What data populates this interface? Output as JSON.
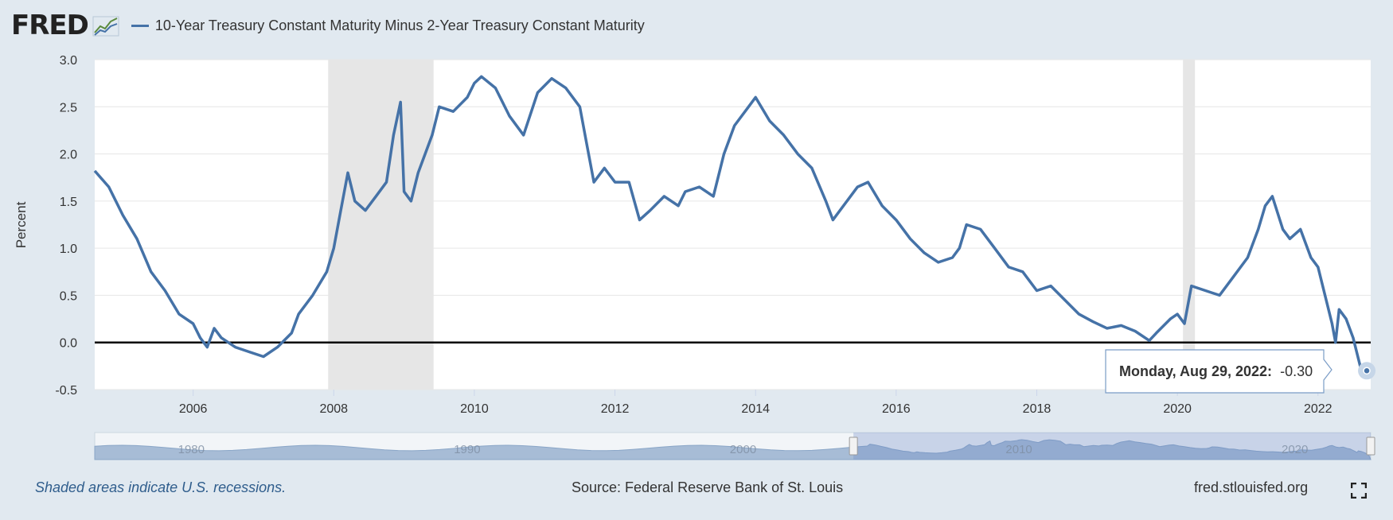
{
  "header": {
    "logo": "FRED",
    "logo_icon": "line-chart-icon",
    "series_label": "10-Year Treasury Constant Maturity Minus 2-Year Treasury Constant Maturity",
    "series_color": "#4572a7"
  },
  "tooltip": {
    "date": "Monday, Aug 29, 2022:",
    "value": "-0.30"
  },
  "footer": {
    "note": "Shaded areas indicate U.S. recessions.",
    "source": "Source: Federal Reserve Bank of St. Louis",
    "site": "fred.stlouisfed.org",
    "fullscreen_icon": "fullscreen-icon"
  },
  "colors": {
    "background": "#e1e9f0",
    "plot": "#ffffff",
    "recession": "#e6e6e6",
    "line": "#4572a7",
    "navigator_fill": "#a7bcd6"
  },
  "chart_data": {
    "type": "line",
    "title": "",
    "xlabel": "",
    "ylabel": "Percent",
    "ylim": [
      -0.5,
      3.0
    ],
    "yticks": [
      "3.0",
      "2.5",
      "2.0",
      "1.5",
      "1.0",
      "0.5",
      "0.0",
      "-0.5"
    ],
    "xlim": [
      2004.6,
      2022.75
    ],
    "xticks": [
      "2006",
      "2008",
      "2010",
      "2012",
      "2014",
      "2016",
      "2018",
      "2020",
      "2022"
    ],
    "grid": true,
    "zero_line": true,
    "recessions": [
      [
        2007.92,
        2009.42
      ],
      [
        2020.08,
        2020.25
      ]
    ],
    "series": [
      {
        "name": "10-Year Treasury Constant Maturity Minus 2-Year Treasury Constant Maturity",
        "x": [
          2004.6,
          2004.8,
          2005.0,
          2005.2,
          2005.4,
          2005.6,
          2005.8,
          2006.0,
          2006.1,
          2006.2,
          2006.3,
          2006.4,
          2006.6,
          2006.8,
          2007.0,
          2007.2,
          2007.4,
          2007.5,
          2007.7,
          2007.9,
          2008.0,
          2008.1,
          2008.2,
          2008.3,
          2008.45,
          2008.6,
          2008.75,
          2008.85,
          2008.95,
          2009.0,
          2009.1,
          2009.2,
          2009.3,
          2009.4,
          2009.5,
          2009.7,
          2009.9,
          2010.0,
          2010.1,
          2010.3,
          2010.5,
          2010.7,
          2010.9,
          2011.1,
          2011.3,
          2011.5,
          2011.6,
          2011.7,
          2011.85,
          2012.0,
          2012.2,
          2012.35,
          2012.5,
          2012.7,
          2012.9,
          2013.0,
          2013.2,
          2013.4,
          2013.55,
          2013.7,
          2013.9,
          2014.0,
          2014.2,
          2014.4,
          2014.6,
          2014.8,
          2015.0,
          2015.1,
          2015.3,
          2015.45,
          2015.6,
          2015.8,
          2016.0,
          2016.2,
          2016.4,
          2016.6,
          2016.8,
          2016.9,
          2017.0,
          2017.2,
          2017.4,
          2017.6,
          2017.8,
          2018.0,
          2018.2,
          2018.4,
          2018.6,
          2018.8,
          2019.0,
          2019.2,
          2019.4,
          2019.6,
          2019.7,
          2019.9,
          2020.0,
          2020.1,
          2020.2,
          2020.4,
          2020.6,
          2020.8,
          2021.0,
          2021.15,
          2021.25,
          2021.35,
          2021.5,
          2021.6,
          2021.75,
          2021.9,
          2022.0,
          2022.1,
          2022.2,
          2022.25,
          2022.3,
          2022.4,
          2022.5,
          2022.6,
          2022.66
        ],
        "y": [
          1.82,
          1.65,
          1.35,
          1.1,
          0.75,
          0.55,
          0.3,
          0.2,
          0.05,
          -0.05,
          0.15,
          0.05,
          -0.05,
          -0.1,
          -0.15,
          -0.05,
          0.1,
          0.3,
          0.5,
          0.75,
          1.0,
          1.4,
          1.8,
          1.5,
          1.4,
          1.55,
          1.7,
          2.2,
          2.55,
          1.6,
          1.5,
          1.8,
          2.0,
          2.2,
          2.5,
          2.45,
          2.6,
          2.75,
          2.82,
          2.7,
          2.4,
          2.2,
          2.65,
          2.8,
          2.7,
          2.5,
          2.1,
          1.7,
          1.85,
          1.7,
          1.7,
          1.3,
          1.4,
          1.55,
          1.45,
          1.6,
          1.65,
          1.55,
          2.0,
          2.3,
          2.5,
          2.6,
          2.35,
          2.2,
          2.0,
          1.85,
          1.5,
          1.3,
          1.5,
          1.65,
          1.7,
          1.45,
          1.3,
          1.1,
          0.95,
          0.85,
          0.9,
          1.0,
          1.25,
          1.2,
          1.0,
          0.8,
          0.75,
          0.55,
          0.6,
          0.45,
          0.3,
          0.22,
          0.15,
          0.18,
          0.12,
          0.02,
          0.1,
          0.25,
          0.3,
          0.2,
          0.6,
          0.55,
          0.5,
          0.7,
          0.9,
          1.2,
          1.45,
          1.55,
          1.2,
          1.1,
          1.2,
          0.9,
          0.8,
          0.5,
          0.2,
          0.0,
          0.35,
          0.25,
          0.05,
          -0.25,
          -0.3
        ]
      }
    ],
    "navigator": {
      "xticks": [
        "1980",
        "1990",
        "2000",
        "2010",
        "2020"
      ],
      "range_start": "2004"
    }
  }
}
